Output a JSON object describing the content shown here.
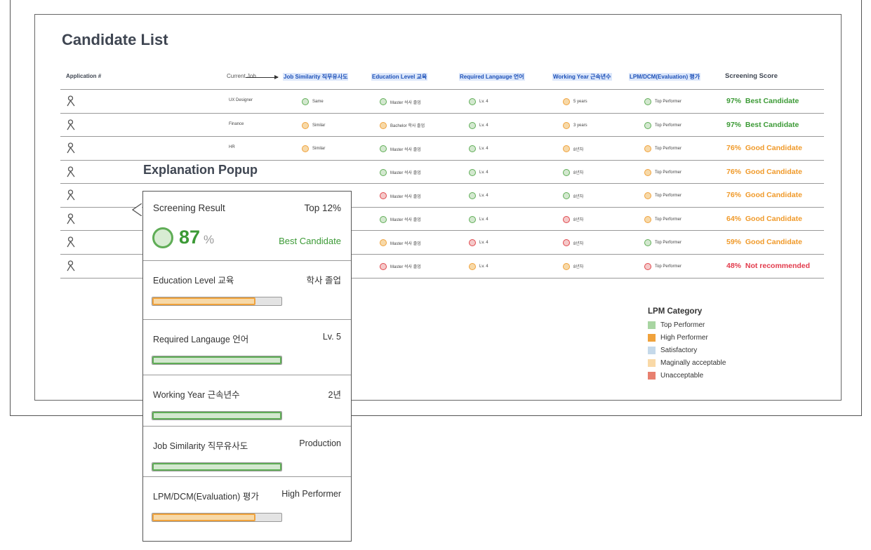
{
  "page": {
    "title": "Candidate List"
  },
  "table": {
    "headers": {
      "app": "Application #",
      "current_job": "Current Job",
      "similarity": "Job Similarity 직무유사도",
      "education": "Education Level 교육",
      "language": "Required Langauge 언어",
      "working": "Working Year 근속년수",
      "lpm": "LPM/DCM(Evaluation) 평가",
      "score": "Screening Score"
    },
    "rows": [
      {
        "job": "UX Designer",
        "sim": "Same",
        "edu": "Master 석사 졸업",
        "lang": "Lv. 4",
        "work": "5 years",
        "lpm": "Top Performer",
        "pct": "97%",
        "verdict": "Best Candidate"
      },
      {
        "job": "Finance",
        "sim": "Similar",
        "edu": "Bachelor 학사 졸업",
        "lang": "Lv. 4",
        "work": "3 years",
        "lpm": "Top Performer",
        "pct": "97%",
        "verdict": "Best Candidate"
      },
      {
        "job": "HR",
        "sim": "Similar",
        "edu": "Master 석사 졸업",
        "lang": "Lv. 4",
        "work": "8년차",
        "lpm": "Top Performer",
        "pct": "76%",
        "verdict": "Good Candidate"
      },
      {
        "job": "",
        "sim": "",
        "edu": "Master 석사 졸업",
        "lang": "Lv. 4",
        "work": "8년차",
        "lpm": "Top Performer",
        "pct": "76%",
        "verdict": "Good Candidate"
      },
      {
        "job": "",
        "sim": "",
        "edu": "Master 석사 졸업",
        "lang": "Lv. 4",
        "work": "8년차",
        "lpm": "Top Performer",
        "pct": "76%",
        "verdict": "Good Candidate"
      },
      {
        "job": "",
        "sim": "",
        "edu": "Master 석사 졸업",
        "lang": "Lv. 4",
        "work": "8년차",
        "lpm": "Top Performer",
        "pct": "64%",
        "verdict": "Good Candidate"
      },
      {
        "job": "",
        "sim": "",
        "edu": "Master 석사 졸업",
        "lang": "Lv. 4",
        "work": "8년차",
        "lpm": "Top Performer",
        "pct": "59%",
        "verdict": "Good Candidate"
      },
      {
        "job": "",
        "sim": "",
        "edu": "Master 석사 졸업",
        "lang": "Lv. 4",
        "work": "8년차",
        "lpm": "Top Performer",
        "pct": "48%",
        "verdict": "Not recommended"
      }
    ]
  },
  "popup": {
    "title": "Explanation Popup",
    "result_label": "Screening Result",
    "rank": "Top 12%",
    "score": "87",
    "score_unit": "%",
    "verdict": "Best Candidate",
    "factors": [
      {
        "label": "Education Level 교육",
        "value": "학사 졸업",
        "fill": 0.8
      },
      {
        "label": "Required Langauge 언어",
        "value": "Lv. 5",
        "fill": 1.0
      },
      {
        "label": "Working Year 근속년수",
        "value": "2년",
        "fill": 1.0
      },
      {
        "label": "Job Similarity 직무유사도",
        "value": "Production",
        "fill": 1.0
      },
      {
        "label": "LPM/DCM(Evaluation) 평가",
        "value": "High Performer",
        "fill": 0.8
      }
    ]
  },
  "legend": {
    "title": "LPM Category",
    "items": [
      "Top Performer",
      "High Performer",
      "Satisfactory",
      "Maginally acceptable",
      "Unacceptable"
    ]
  },
  "colors": {
    "green": "#5fad56",
    "green_fill": "#d3e8cf",
    "orange": "#f0a23c",
    "orange_fill": "#f7d9a8",
    "red": "#e0474c",
    "red_fill": "#f5c9c9",
    "text_green": "#3c9a36",
    "text_orange": "#f09a2a",
    "text_red": "#e23b4c",
    "legend": [
      "#a8d5a2",
      "#f0a23c",
      "#c5d9ea",
      "#f9d9a7",
      "#e8806f"
    ]
  }
}
